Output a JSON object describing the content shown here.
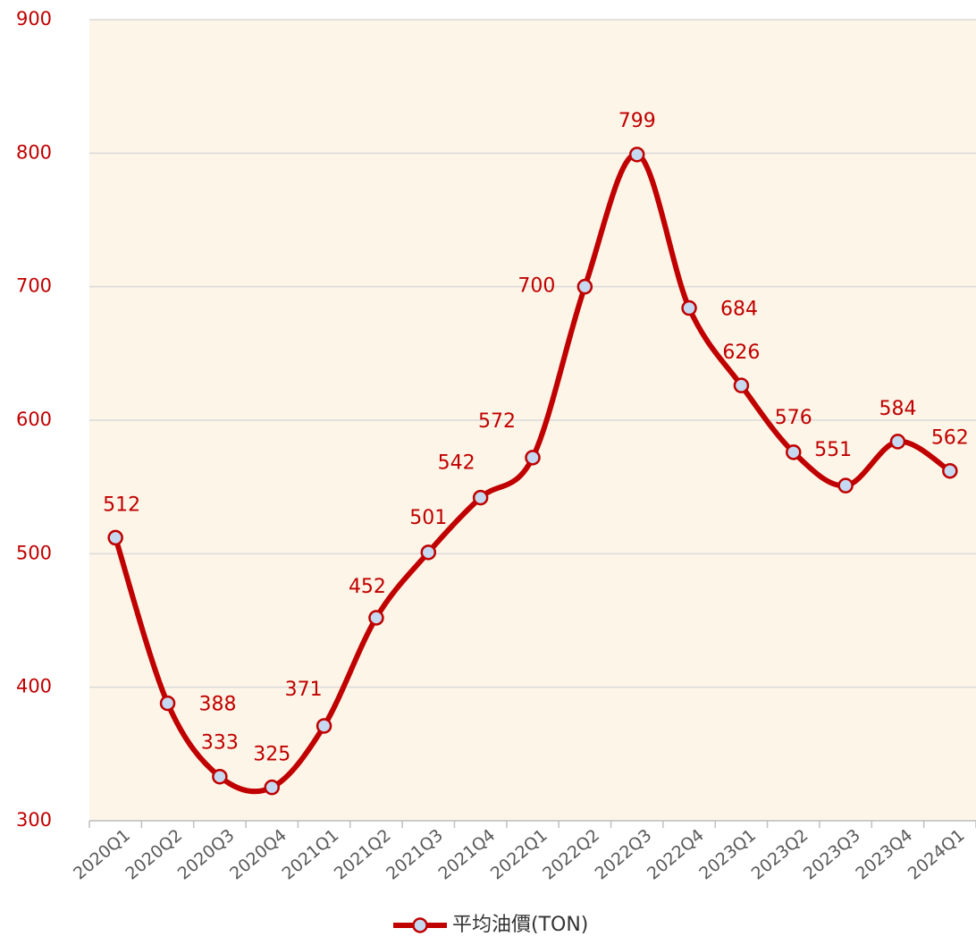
{
  "chart_data": {
    "type": "line",
    "categories": [
      "2020Q1",
      "2020Q2",
      "2020Q3",
      "2020Q4",
      "2021Q1",
      "2021Q2",
      "2021Q3",
      "2021Q4",
      "2022Q1",
      "2022Q2",
      "2022Q3",
      "2022Q4",
      "2023Q1",
      "2023Q2",
      "2023Q3",
      "2023Q4",
      "2024Q1"
    ],
    "series": [
      {
        "name": "平均油價(TON)",
        "color": "#c00000",
        "marker_color": "#c5d9f1",
        "values": [
          512,
          388,
          333,
          325,
          371,
          452,
          501,
          542,
          572,
          700,
          799,
          684,
          626,
          576,
          551,
          584,
          562
        ]
      }
    ],
    "ylim": [
      300,
      900
    ],
    "yticks": [
      300,
      400,
      500,
      600,
      700,
      800,
      900
    ],
    "grid": true,
    "legend": "bottom"
  }
}
